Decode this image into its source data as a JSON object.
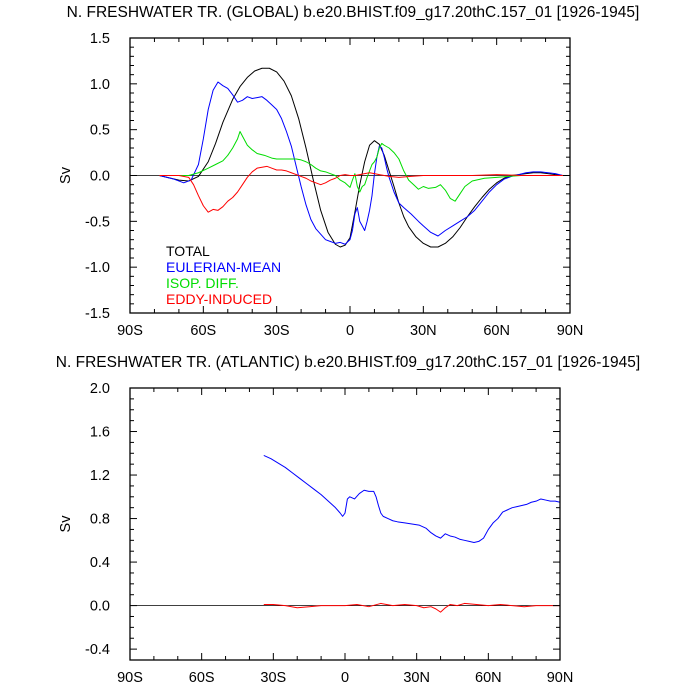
{
  "chart_data": [
    {
      "type": "line",
      "title": "N. FRESHWATER TR. (GLOBAL) b.e20.BHIST.f09_g17.20thC.157_01 [1926-1945]",
      "xlabel": "",
      "ylabel": "Sv",
      "xlim": [
        -90,
        90
      ],
      "ylim": [
        -1.5,
        1.5
      ],
      "x_ticks": [
        -90,
        -60,
        -30,
        0,
        30,
        60,
        90
      ],
      "x_tick_labels": [
        "90S",
        "60S",
        "30S",
        "0",
        "30N",
        "60N",
        "90N"
      ],
      "y_ticks": [
        -1.5,
        -1.0,
        -0.5,
        0.0,
        0.5,
        1.0,
        1.5
      ],
      "y_tick_labels": [
        "-1.5",
        "-1.0",
        "-0.5",
        "0.0",
        "0.5",
        "1.0",
        "1.5"
      ],
      "grid": false,
      "legend_position": "bottom-left",
      "zero_line": true,
      "series": [
        {
          "name": "TOTAL",
          "color": "#000000",
          "x": [
            -78,
            -70,
            -66,
            -62,
            -58,
            -55,
            -52,
            -48,
            -45,
            -42,
            -39,
            -36,
            -33,
            -30,
            -27,
            -24,
            -21,
            -18,
            -15,
            -12,
            -9,
            -6,
            -4,
            -2,
            0,
            2,
            4,
            6,
            8,
            10,
            12,
            14,
            16,
            18,
            20,
            22,
            24,
            27,
            30,
            33,
            36,
            39,
            42,
            45,
            48,
            51,
            54,
            57,
            60,
            63,
            66,
            69,
            72,
            75,
            78,
            81,
            84,
            87,
            90
          ],
          "y": [
            0.0,
            -0.05,
            -0.06,
            -0.01,
            0.15,
            0.35,
            0.58,
            0.83,
            0.97,
            1.07,
            1.14,
            1.17,
            1.17,
            1.13,
            1.03,
            0.87,
            0.62,
            0.3,
            -0.05,
            -0.38,
            -0.62,
            -0.75,
            -0.78,
            -0.76,
            -0.68,
            -0.4,
            -0.1,
            0.15,
            0.33,
            0.38,
            0.34,
            0.22,
            0.05,
            -0.12,
            -0.3,
            -0.45,
            -0.56,
            -0.67,
            -0.74,
            -0.78,
            -0.78,
            -0.74,
            -0.67,
            -0.57,
            -0.45,
            -0.34,
            -0.24,
            -0.15,
            -0.08,
            -0.03,
            0.0,
            0.01,
            0.02,
            0.03,
            0.03,
            0.02,
            0.01,
            0.0,
            0.0
          ]
        },
        {
          "name": "EULERIAN-MEAN",
          "color": "#0000ff",
          "x": [
            -78,
            -72,
            -68,
            -65,
            -62,
            -60,
            -58,
            -56,
            -54,
            -52,
            -50,
            -48,
            -46,
            -44,
            -42,
            -40,
            -38,
            -36,
            -34,
            -32,
            -30,
            -28,
            -26,
            -24,
            -22,
            -20,
            -18,
            -16,
            -14,
            -12,
            -10,
            -8,
            -6,
            -4,
            -2,
            0,
            1,
            2,
            3,
            4,
            5,
            6,
            7,
            8,
            9,
            10,
            11,
            12,
            13,
            14,
            15,
            16,
            18,
            20,
            22,
            25,
            28,
            30,
            33,
            36,
            39,
            42,
            45,
            48,
            51,
            54,
            57,
            60,
            63,
            66,
            69,
            72,
            75,
            78,
            81,
            84,
            87,
            90
          ],
          "y": [
            0.0,
            -0.04,
            -0.08,
            -0.05,
            0.12,
            0.4,
            0.72,
            0.93,
            1.02,
            0.98,
            0.95,
            0.88,
            0.8,
            0.82,
            0.86,
            0.84,
            0.85,
            0.86,
            0.82,
            0.77,
            0.72,
            0.62,
            0.48,
            0.32,
            0.1,
            -0.12,
            -0.32,
            -0.48,
            -0.58,
            -0.64,
            -0.7,
            -0.72,
            -0.74,
            -0.73,
            -0.75,
            -0.7,
            -0.6,
            -0.42,
            -0.35,
            -0.5,
            -0.55,
            -0.6,
            -0.5,
            -0.38,
            -0.22,
            0.02,
            0.2,
            0.32,
            0.3,
            0.2,
            0.08,
            -0.02,
            -0.18,
            -0.3,
            -0.35,
            -0.42,
            -0.5,
            -0.55,
            -0.62,
            -0.66,
            -0.6,
            -0.55,
            -0.5,
            -0.45,
            -0.38,
            -0.28,
            -0.18,
            -0.1,
            -0.04,
            -0.01,
            0.01,
            0.03,
            0.04,
            0.04,
            0.03,
            0.02,
            0.0,
            0.0
          ]
        },
        {
          "name": "ISOP. DIFF.",
          "color": "#00dd00",
          "x": [
            -78,
            -66,
            -62,
            -58,
            -55,
            -52,
            -50,
            -48,
            -46,
            -45,
            -44,
            -42,
            -40,
            -38,
            -35,
            -32,
            -30,
            -26,
            -22,
            -20,
            -18,
            -16,
            -14,
            -12,
            -10,
            -8,
            -6,
            -4,
            -2,
            0,
            1,
            2,
            3,
            4,
            5,
            6,
            7,
            8,
            9,
            10,
            11,
            12,
            13,
            14,
            16,
            18,
            20,
            22,
            24,
            26,
            28,
            30,
            32,
            35,
            37,
            39,
            41,
            43,
            45,
            47,
            50,
            55,
            60,
            65,
            70,
            75,
            80,
            85,
            90
          ],
          "y": [
            0.0,
            0.0,
            0.03,
            0.08,
            0.12,
            0.16,
            0.22,
            0.3,
            0.4,
            0.48,
            0.43,
            0.33,
            0.28,
            0.24,
            0.22,
            0.19,
            0.18,
            0.18,
            0.18,
            0.17,
            0.15,
            0.12,
            0.08,
            0.05,
            0.04,
            0.02,
            0.0,
            -0.05,
            -0.08,
            -0.13,
            -0.05,
            0.02,
            -0.12,
            -0.18,
            -0.12,
            -0.1,
            -0.02,
            0.05,
            0.12,
            0.15,
            0.2,
            0.3,
            0.35,
            0.33,
            0.3,
            0.25,
            0.18,
            0.05,
            -0.05,
            -0.1,
            -0.15,
            -0.12,
            -0.14,
            -0.13,
            -0.1,
            -0.16,
            -0.25,
            -0.28,
            -0.2,
            -0.12,
            -0.06,
            -0.03,
            -0.02,
            -0.01,
            0.0,
            0.0,
            0.0,
            0.0,
            0.0
          ]
        },
        {
          "name": "EDDY-INDUCED",
          "color": "#ff0000",
          "x": [
            -78,
            -70,
            -66,
            -64,
            -62,
            -60,
            -58,
            -56,
            -54,
            -52,
            -50,
            -48,
            -46,
            -44,
            -42,
            -40,
            -38,
            -36,
            -34,
            -32,
            -30,
            -28,
            -26,
            -24,
            -22,
            -20,
            -18,
            -16,
            -14,
            -12,
            -10,
            -8,
            -6,
            -4,
            -2,
            0,
            2,
            4,
            6,
            8,
            10,
            12,
            14,
            16,
            20,
            25,
            30,
            40,
            50,
            60,
            70,
            80,
            90
          ],
          "y": [
            0.0,
            0.0,
            -0.02,
            -0.1,
            -0.22,
            -0.33,
            -0.4,
            -0.37,
            -0.38,
            -0.34,
            -0.28,
            -0.24,
            -0.18,
            -0.1,
            -0.02,
            0.04,
            0.08,
            0.09,
            0.1,
            0.08,
            0.06,
            0.06,
            0.05,
            0.03,
            0.01,
            -0.01,
            -0.03,
            -0.06,
            -0.08,
            -0.1,
            -0.08,
            -0.05,
            -0.03,
            0.0,
            0.01,
            0.0,
            0.0,
            0.01,
            0.02,
            0.03,
            0.02,
            0.01,
            0.0,
            -0.01,
            -0.02,
            -0.01,
            0.0,
            0.0,
            0.0,
            0.01,
            0.0,
            0.0,
            0.0
          ]
        }
      ],
      "legend": [
        {
          "label": "TOTAL",
          "color": "#000000"
        },
        {
          "label": "EULERIAN-MEAN",
          "color": "#0000ff"
        },
        {
          "label": "ISOP. DIFF.",
          "color": "#00dd00"
        },
        {
          "label": "EDDY-INDUCED",
          "color": "#ff0000"
        }
      ]
    },
    {
      "type": "line",
      "title": "N. FRESHWATER TR. (ATLANTIC) b.e20.BHIST.f09_g17.20thC.157_01 [1926-1945]",
      "xlabel": "",
      "ylabel": "Sv",
      "xlim": [
        -90,
        90
      ],
      "ylim": [
        -0.5,
        2.0
      ],
      "x_ticks": [
        -90,
        -60,
        -30,
        0,
        30,
        60,
        90
      ],
      "x_tick_labels": [
        "90S",
        "60S",
        "30S",
        "0",
        "30N",
        "60N",
        "90N"
      ],
      "y_ticks": [
        -0.4,
        0.0,
        0.4,
        0.8,
        1.2,
        1.6,
        2.0
      ],
      "y_tick_labels": [
        "-0.4",
        "0.0",
        "0.4",
        "0.8",
        "1.2",
        "1.6",
        "2.0"
      ],
      "grid": false,
      "zero_line": true,
      "series": [
        {
          "color": "#0000ff",
          "x": [
            -34,
            -31,
            -28,
            -25,
            -22,
            -19,
            -16,
            -13,
            -10,
            -7,
            -4,
            -2,
            -1,
            0,
            1,
            2,
            4,
            6,
            8,
            10,
            12,
            13,
            14,
            15,
            16,
            18,
            20,
            22,
            25,
            28,
            31,
            34,
            36,
            38,
            40,
            42,
            44,
            46,
            48,
            50,
            52,
            54,
            56,
            58,
            60,
            62,
            64,
            66,
            68,
            70,
            72,
            74,
            76,
            78,
            80,
            82,
            84,
            86,
            88,
            90
          ],
          "y": [
            1.38,
            1.35,
            1.31,
            1.27,
            1.22,
            1.17,
            1.12,
            1.07,
            1.02,
            0.96,
            0.9,
            0.85,
            0.82,
            0.85,
            0.98,
            1.0,
            0.98,
            1.03,
            1.06,
            1.05,
            1.05,
            1.0,
            0.92,
            0.85,
            0.82,
            0.8,
            0.78,
            0.77,
            0.76,
            0.75,
            0.74,
            0.71,
            0.67,
            0.64,
            0.62,
            0.66,
            0.64,
            0.63,
            0.61,
            0.6,
            0.59,
            0.58,
            0.59,
            0.62,
            0.7,
            0.76,
            0.8,
            0.86,
            0.88,
            0.9,
            0.91,
            0.92,
            0.93,
            0.95,
            0.96,
            0.98,
            0.97,
            0.96,
            0.96,
            0.95
          ]
        },
        {
          "color": "#ff0000",
          "x": [
            -34,
            -30,
            -25,
            -20,
            -15,
            -10,
            -5,
            0,
            5,
            10,
            15,
            20,
            25,
            30,
            33,
            36,
            38,
            40,
            42,
            44,
            47,
            50,
            55,
            60,
            65,
            70,
            75,
            80,
            85,
            90
          ],
          "y": [
            0.01,
            0.01,
            0.0,
            -0.02,
            -0.01,
            0.0,
            0.0,
            0.0,
            0.01,
            -0.01,
            0.02,
            0.0,
            0.01,
            0.0,
            -0.02,
            -0.01,
            -0.03,
            -0.06,
            -0.02,
            0.01,
            0.0,
            0.02,
            0.01,
            0.0,
            0.01,
            0.0,
            -0.01,
            0.0,
            0.0,
            0.0
          ]
        }
      ]
    }
  ]
}
